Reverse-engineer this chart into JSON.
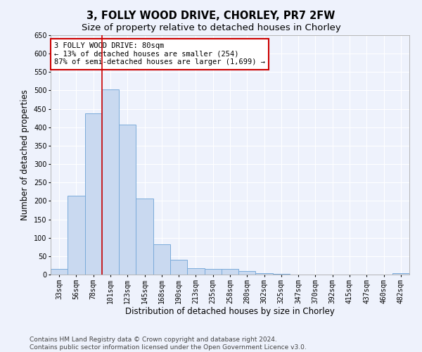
{
  "title": "3, FOLLY WOOD DRIVE, CHORLEY, PR7 2FW",
  "subtitle": "Size of property relative to detached houses in Chorley",
  "xlabel": "Distribution of detached houses by size in Chorley",
  "ylabel": "Number of detached properties",
  "categories": [
    "33sqm",
    "56sqm",
    "78sqm",
    "101sqm",
    "123sqm",
    "145sqm",
    "168sqm",
    "190sqm",
    "213sqm",
    "235sqm",
    "258sqm",
    "280sqm",
    "302sqm",
    "325sqm",
    "347sqm",
    "370sqm",
    "392sqm",
    "415sqm",
    "437sqm",
    "460sqm",
    "482sqm"
  ],
  "values": [
    15,
    215,
    437,
    503,
    408,
    207,
    83,
    40,
    18,
    15,
    15,
    9,
    4,
    1,
    0,
    0,
    0,
    0,
    0,
    0,
    3
  ],
  "bar_color": "#c9d9f0",
  "bar_edge_color": "#7aabda",
  "property_line_x": 2.5,
  "annotation_text": "3 FOLLY WOOD DRIVE: 80sqm\n← 13% of detached houses are smaller (254)\n87% of semi-detached houses are larger (1,699) →",
  "annotation_box_color": "#ffffff",
  "annotation_box_edge_color": "#cc0000",
  "vline_color": "#cc0000",
  "ylim": [
    0,
    650
  ],
  "yticks": [
    0,
    50,
    100,
    150,
    200,
    250,
    300,
    350,
    400,
    450,
    500,
    550,
    600,
    650
  ],
  "footer": "Contains HM Land Registry data © Crown copyright and database right 2024.\nContains public sector information licensed under the Open Government Licence v3.0.",
  "background_color": "#eef2fc",
  "grid_color": "#ffffff",
  "title_fontsize": 10.5,
  "subtitle_fontsize": 9.5,
  "axis_label_fontsize": 8.5,
  "tick_fontsize": 7,
  "annotation_fontsize": 7.5,
  "footer_fontsize": 6.5
}
